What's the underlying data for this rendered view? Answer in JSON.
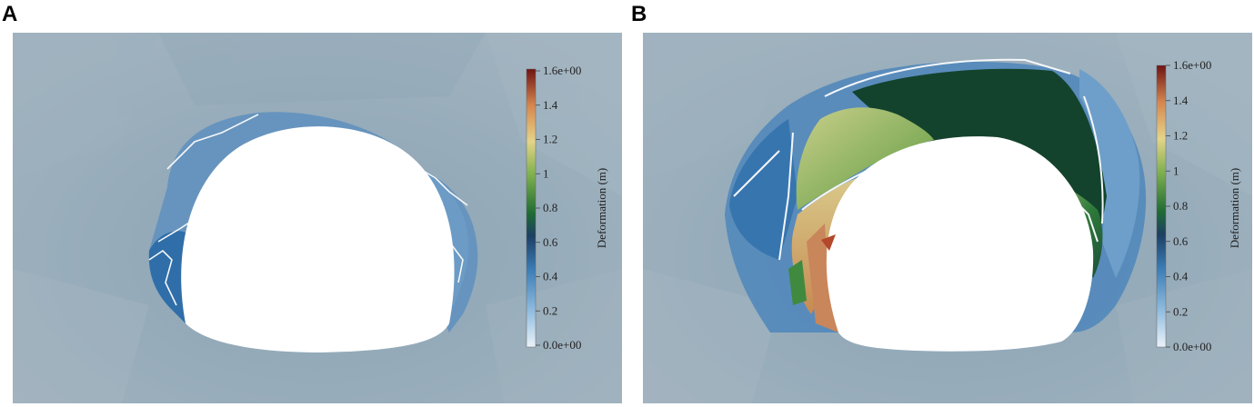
{
  "panels": [
    {
      "letter": "A",
      "colorbar": {
        "title": "Deformation (m)",
        "ticks": [
          "1.6e+00",
          "1.4",
          "1.2",
          "1",
          "0.8",
          "0.6",
          "0.4",
          "0.2",
          "0.0e+00"
        ],
        "min": 0.0,
        "max": 1.6
      }
    },
    {
      "letter": "B",
      "colorbar": {
        "title": "Deformation (m)",
        "ticks": [
          "1.6e+00",
          "1.4",
          "1.2",
          "1",
          "0.8",
          "0.6",
          "0.4",
          "0.2",
          "0.0e+00"
        ],
        "min": 0.0,
        "max": 1.6
      }
    }
  ],
  "colors": {
    "background_rock": "#93a8b6",
    "colormap": [
      "#eaf2fa",
      "#4f90c4",
      "#1d4f7a",
      "#1f6b34",
      "#7fb04e",
      "#e4d48a",
      "#d5864e",
      "#6e1414"
    ]
  }
}
